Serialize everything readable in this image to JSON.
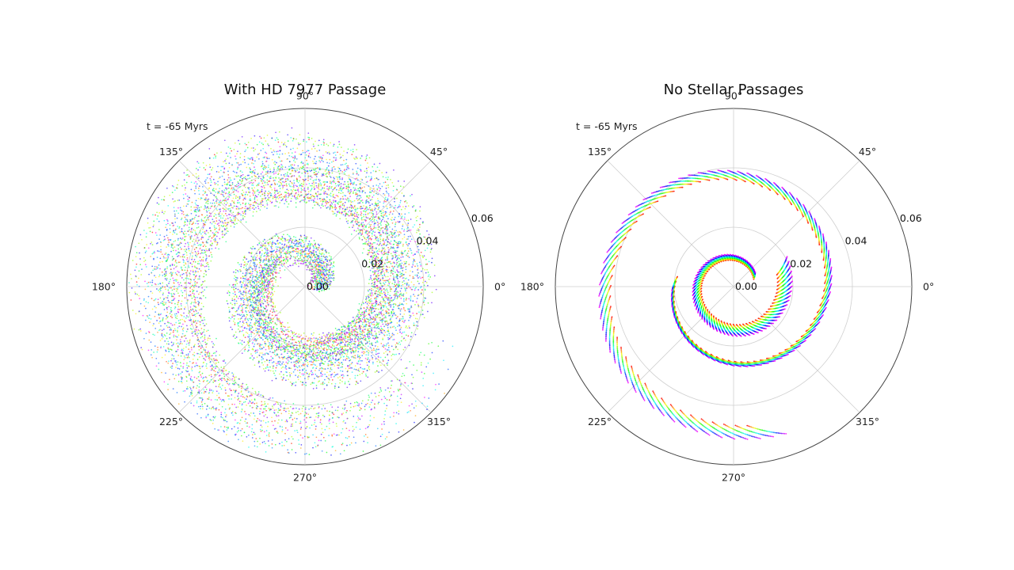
{
  "chart_data": [
    {
      "type": "scatter",
      "projection": "polar",
      "title": "With HD 7977 Passage",
      "annotation": "t = -65 Myrs",
      "theta_ticks": [
        "0°",
        "45°",
        "90°",
        "135°",
        "180°",
        "225°",
        "270°",
        "315°"
      ],
      "r_ticks": [
        "0.00",
        "0.02",
        "0.04",
        "0.06"
      ],
      "r_tick_values": [
        0.0,
        0.02,
        0.04,
        0.06
      ],
      "rlim": [
        0,
        0.06
      ],
      "r_label_angle_deg": 22.5,
      "grid": true,
      "point_color_map": "hsv",
      "structure": "scattered",
      "spirals": [
        {
          "r0": 0.005,
          "r1": 0.055,
          "theta0_deg": 10,
          "turns": 1.55
        },
        {
          "r0": 0.012,
          "r1": 0.05,
          "theta0_deg": 150,
          "turns": 1.3
        },
        {
          "r0": 0.02,
          "r1": 0.052,
          "theta0_deg": 280,
          "turns": 1.1
        }
      ]
    },
    {
      "type": "scatter",
      "projection": "polar",
      "title": "No Stellar Passages",
      "annotation": "t = -65 Myrs",
      "theta_ticks": [
        "0°",
        "45°",
        "90°",
        "135°",
        "180°",
        "225°",
        "270°",
        "315°"
      ],
      "r_ticks": [
        "0.00",
        "0.02",
        "0.04",
        "0.06"
      ],
      "r_tick_values": [
        0.0,
        0.02,
        0.04,
        0.06
      ],
      "rlim": [
        0,
        0.06
      ],
      "r_label_angle_deg": 22.5,
      "grid": true,
      "point_color_map": "hsv",
      "structure": "ordered",
      "spirals": [
        {
          "r0": 0.008,
          "r1": 0.018,
          "theta0_deg": 20,
          "turns": 1.0
        },
        {
          "r0": 0.02,
          "r1": 0.05,
          "theta0_deg": 170,
          "turns": 1.3
        }
      ]
    }
  ]
}
